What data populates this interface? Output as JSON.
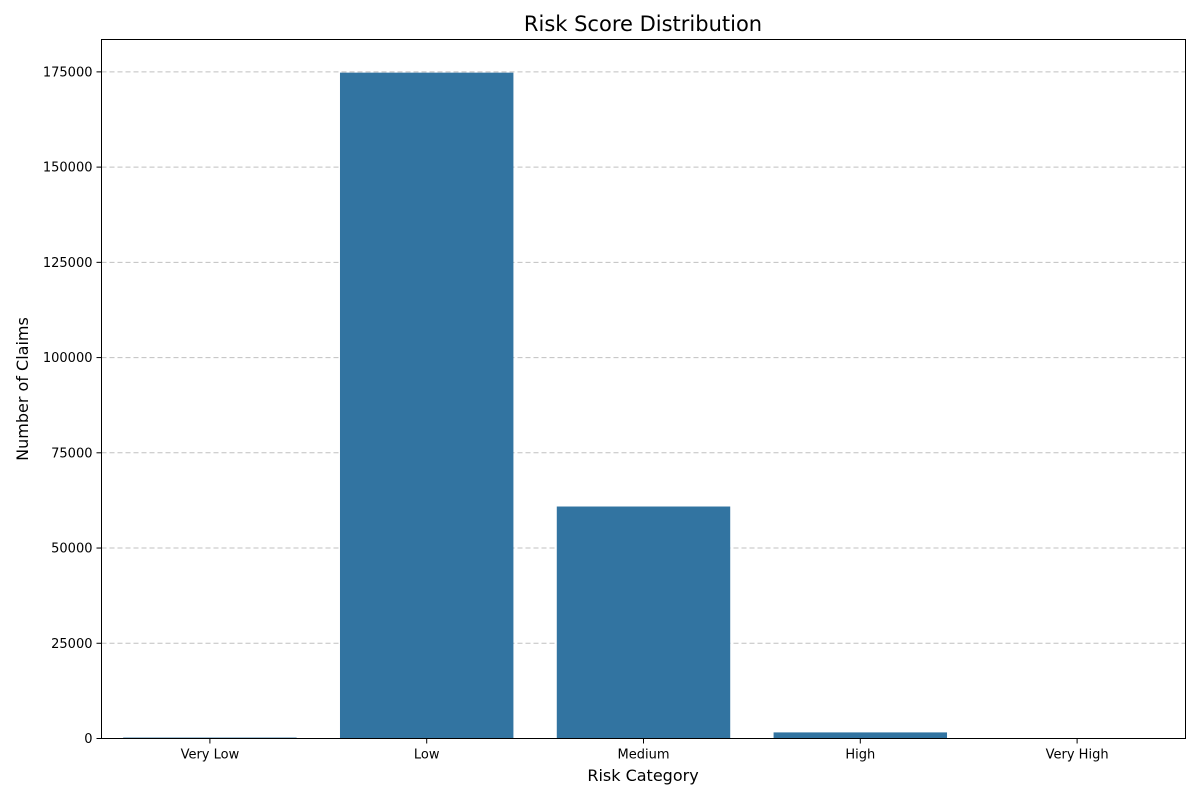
{
  "chart_data": {
    "type": "bar",
    "title": "Risk Score Distribution",
    "xlabel": "Risk Category",
    "ylabel": "Number of Claims",
    "categories": [
      "Very Low",
      "Low",
      "Medium",
      "High",
      "Very High"
    ],
    "values": [
      250,
      174800,
      60900,
      1600,
      30
    ],
    "ylim": [
      0,
      183500
    ],
    "yticks": [
      0,
      25000,
      50000,
      75000,
      100000,
      125000,
      150000,
      175000
    ],
    "ytick_labels": [
      "0",
      "25000",
      "50000",
      "75000",
      "100000",
      "125000",
      "150000",
      "175000"
    ],
    "grid": "y-dashed",
    "legend": "none",
    "bar_color": "#3274a1",
    "grid_color": "#c0c0c0"
  }
}
